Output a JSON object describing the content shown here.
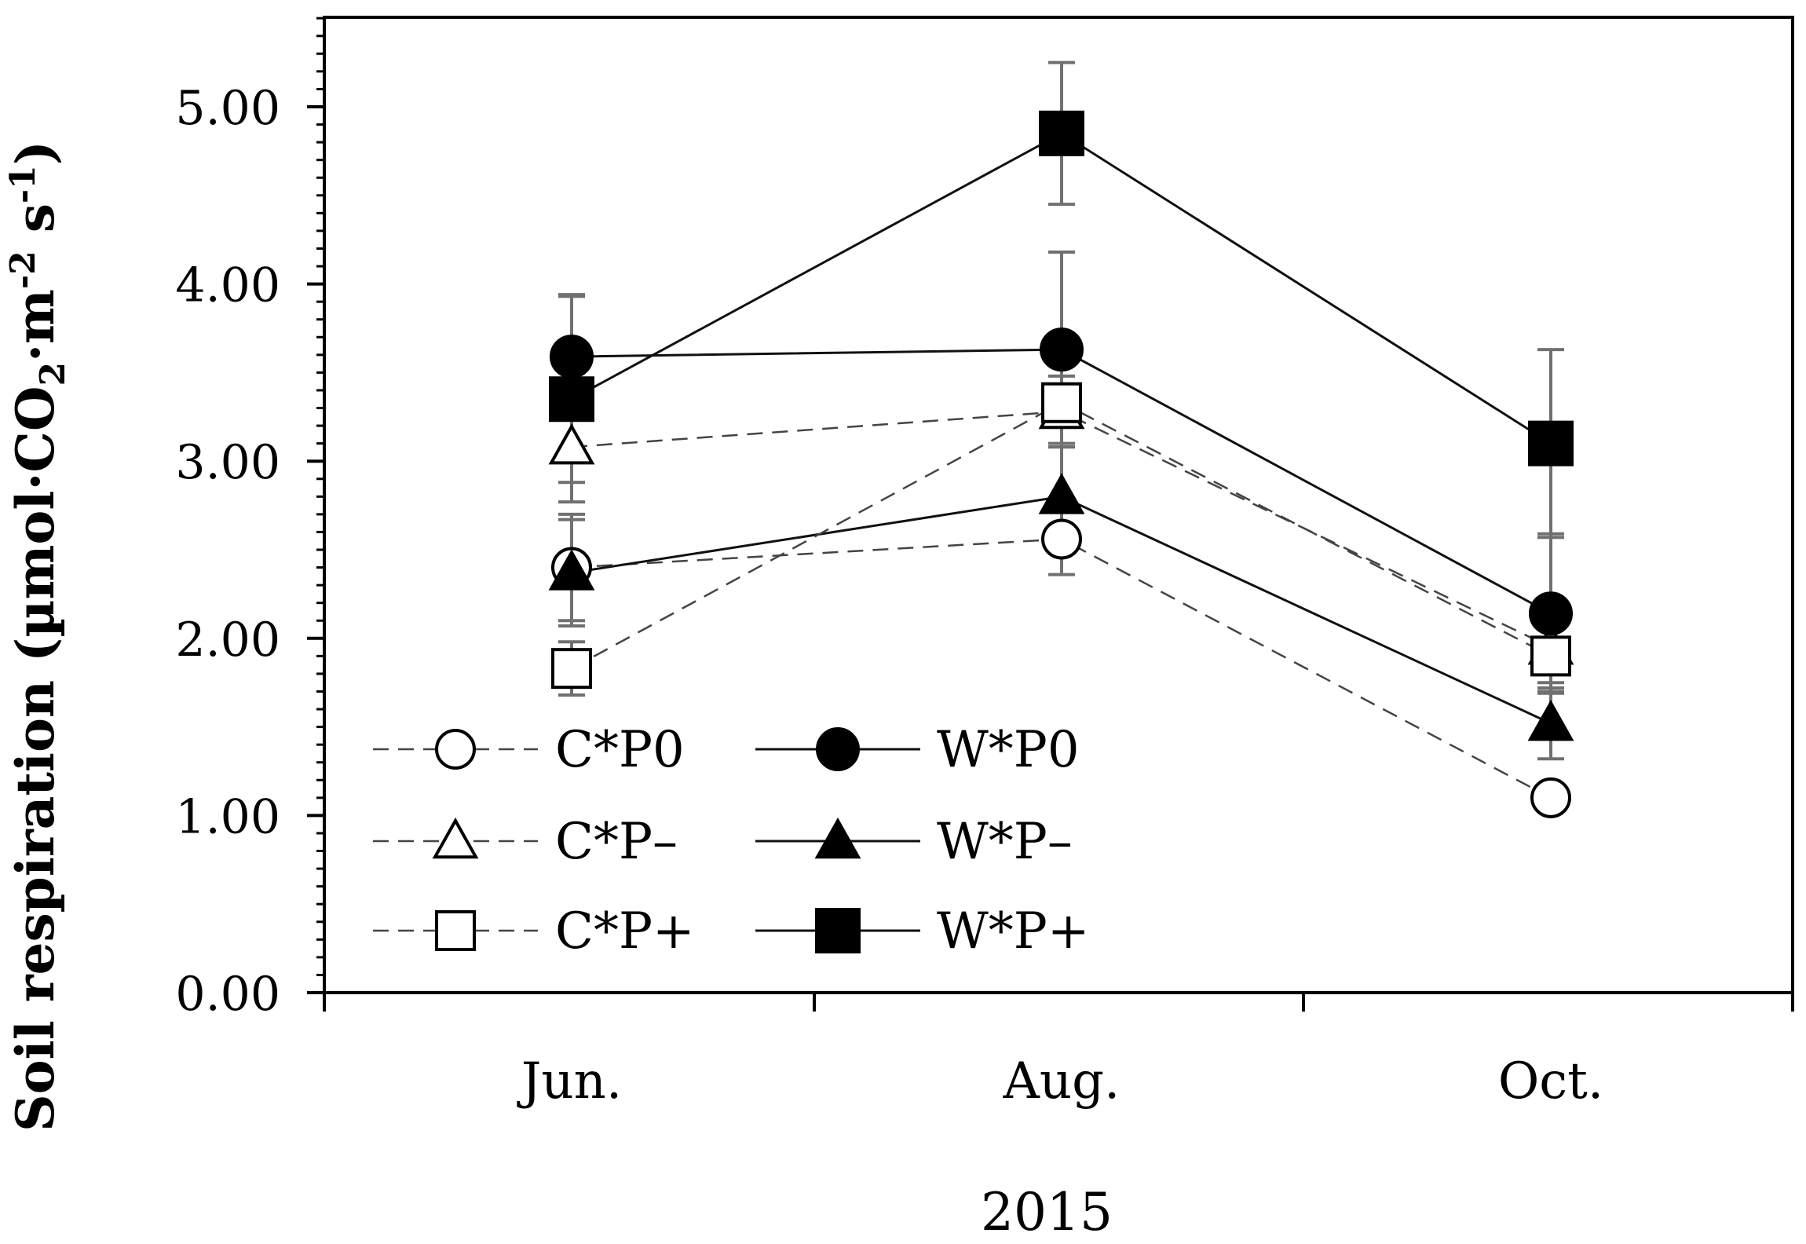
{
  "chart_data": {
    "type": "line",
    "title": "",
    "xlabel": "2015",
    "ylabel": "Soil respiration (µmol·CO₂·m⁻² s⁻¹)",
    "ylabel_parts": {
      "pre": "Soil respiration (µmol·CO",
      "sub": "2",
      "mid": "·m",
      "sup1": "-2",
      "mid2": " s",
      "sup2": "-1",
      "post": ")"
    },
    "categories": [
      "Jun.",
      "Aug.",
      "Oct."
    ],
    "ylim": [
      0,
      5.5
    ],
    "yticks": [
      0,
      1,
      2,
      3,
      4,
      5
    ],
    "ytick_labels": [
      "0.00",
      "1.00",
      "2.00",
      "3.00",
      "4.00",
      "5.00"
    ],
    "grid": false,
    "legend_position": "bottom-left, inside plot",
    "series": [
      {
        "name": "C*P0",
        "marker": "circle",
        "filled": false,
        "line": "dashed",
        "values": [
          2.4,
          2.56,
          1.1
        ],
        "err": [
          0.3,
          0.2,
          0.05
        ]
      },
      {
        "name": "W*P0",
        "marker": "circle",
        "filled": true,
        "line": "solid",
        "values": [
          3.59,
          3.63,
          2.14
        ],
        "err": [
          0.35,
          0.55,
          0.45
        ]
      },
      {
        "name": "C*P–",
        "marker": "triangle",
        "filled": false,
        "line": "dashed",
        "values": [
          3.08,
          3.28,
          1.95
        ],
        "err": [
          0.2,
          0.2,
          0.2
        ]
      },
      {
        "name": "W*P–",
        "marker": "triangle",
        "filled": true,
        "line": "solid",
        "values": [
          2.37,
          2.8,
          1.52
        ],
        "err": [
          0.3,
          0.3,
          0.2
        ]
      },
      {
        "name": "C*P+",
        "marker": "square",
        "filled": false,
        "line": "dashed",
        "values": [
          1.83,
          3.33,
          1.9
        ],
        "err": [
          0.15,
          0.85,
          0.2
        ]
      },
      {
        "name": "W*P+",
        "marker": "square",
        "filled": true,
        "line": "solid",
        "values": [
          3.35,
          4.85,
          3.1
        ],
        "err": [
          0.58,
          0.4,
          0.53
        ]
      }
    ]
  }
}
